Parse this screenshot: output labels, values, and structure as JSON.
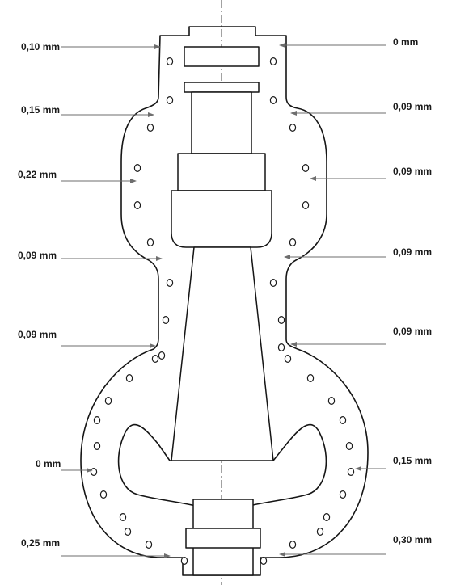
{
  "measurements": {
    "left": [
      "0,10 mm",
      "0,15 mm",
      "0,22 mm",
      "0,09 mm",
      "0,09 mm",
      "0 mm",
      "0,25 mm"
    ],
    "right": [
      "0 mm",
      "0,09 mm",
      "0,09 mm",
      "0,09 mm",
      "0,09 mm",
      "0,15 mm",
      "0,30 mm"
    ]
  },
  "colors": {
    "outline": "#151515",
    "arrow": "#6e6e6e",
    "text": "#1a1a1a",
    "background": "#ffffff"
  }
}
